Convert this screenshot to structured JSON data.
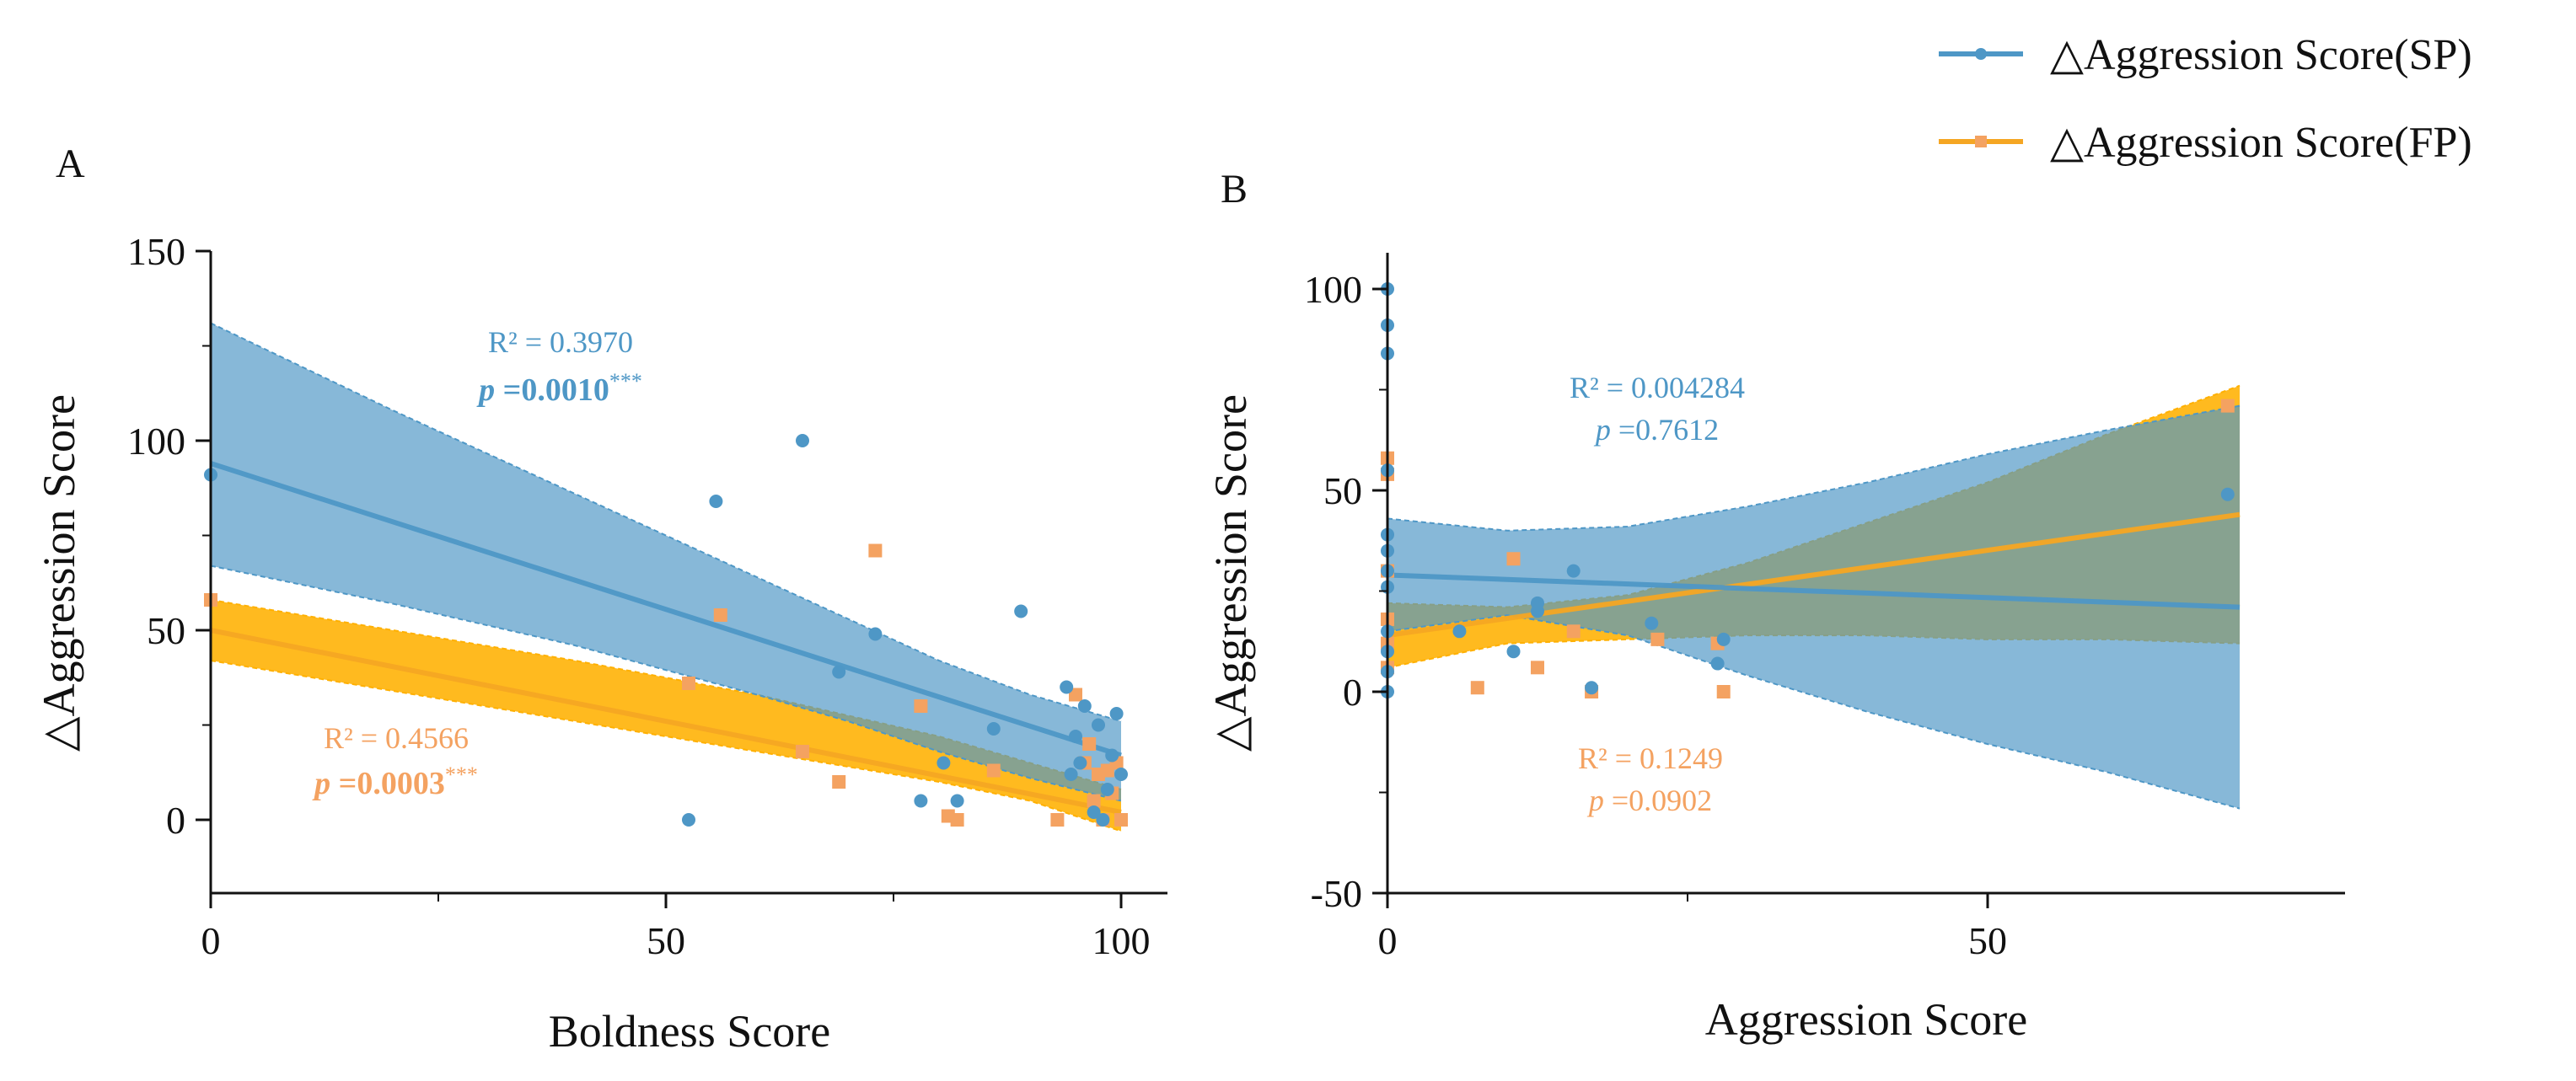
{
  "legend": {
    "position": "top-right",
    "entries": [
      {
        "label": "△Aggression Score(SP)",
        "color": "#4e97c6",
        "marker": "circle"
      },
      {
        "label": "△Aggression Score(FP)",
        "color": "#f5a623",
        "marker": "square"
      }
    ]
  },
  "colors": {
    "sp": "#4e97c6",
    "fp": "#f5a623",
    "fp_points": "#f4a261",
    "sp_band": "#4e97c6",
    "fp_band": "#ffb000"
  },
  "chart_data": [
    {
      "panel": "A",
      "type": "scatter",
      "xlabel": "Boldness Score",
      "ylabel": "△Aggression Score",
      "xlim": [
        0,
        105
      ],
      "ylim": [
        -20,
        150
      ],
      "xticks": [
        0,
        50,
        100
      ],
      "yticks": [
        0,
        50,
        100,
        150
      ],
      "grid": false,
      "series": [
        {
          "name": "△Aggression Score(SP)",
          "points": [
            [
              0,
              91
            ],
            [
              52.5,
              0
            ],
            [
              55.5,
              84
            ],
            [
              65,
              100
            ],
            [
              69,
              39
            ],
            [
              73,
              49
            ],
            [
              78,
              5
            ],
            [
              80.5,
              15
            ],
            [
              82,
              5
            ],
            [
              86,
              24
            ],
            [
              89,
              55
            ],
            [
              94,
              35
            ],
            [
              94.5,
              12
            ],
            [
              95,
              22
            ],
            [
              95.5,
              15
            ],
            [
              96,
              30
            ],
            [
              97,
              2
            ],
            [
              97.5,
              25
            ],
            [
              98,
              0
            ],
            [
              98.5,
              8
            ],
            [
              99,
              17
            ],
            [
              99.5,
              28
            ],
            [
              100,
              12
            ]
          ],
          "fit": {
            "x": [
              0,
              100
            ],
            "y": [
              94,
              17
            ]
          },
          "ci_upper": [
            [
              0,
              131
            ],
            [
              20,
              108
            ],
            [
              40,
              86
            ],
            [
              60,
              64
            ],
            [
              70,
              53
            ],
            [
              80,
              42
            ],
            [
              90,
              33
            ],
            [
              100,
              26
            ]
          ],
          "ci_lower": [
            [
              0,
              67
            ],
            [
              20,
              57
            ],
            [
              40,
              46
            ],
            [
              60,
              33
            ],
            [
              70,
              26
            ],
            [
              80,
              18
            ],
            [
              90,
              11
            ],
            [
              100,
              5
            ]
          ]
        },
        {
          "name": "△Aggression Score(FP)",
          "points": [
            [
              0,
              58
            ],
            [
              52.5,
              36
            ],
            [
              56,
              54
            ],
            [
              65,
              18
            ],
            [
              69,
              10
            ],
            [
              73,
              71
            ],
            [
              78,
              30
            ],
            [
              81,
              1
            ],
            [
              82,
              0
            ],
            [
              86,
              13
            ],
            [
              93,
              0
            ],
            [
              95,
              33
            ],
            [
              96,
              15
            ],
            [
              96.5,
              20
            ],
            [
              97,
              5
            ],
            [
              97.5,
              12
            ],
            [
              98,
              0
            ],
            [
              98.5,
              13
            ],
            [
              99,
              7
            ],
            [
              99.5,
              15
            ],
            [
              100,
              0
            ]
          ],
          "fit": {
            "x": [
              0,
              100
            ],
            "y": [
              50,
              2
            ]
          },
          "ci_upper": [
            [
              0,
              58
            ],
            [
              20,
              50
            ],
            [
              40,
              42
            ],
            [
              60,
              33
            ],
            [
              80,
              22
            ],
            [
              90,
              15
            ],
            [
              100,
              8
            ]
          ],
          "ci_lower": [
            [
              0,
              42
            ],
            [
              20,
              34
            ],
            [
              40,
              26
            ],
            [
              60,
              18
            ],
            [
              80,
              10
            ],
            [
              90,
              5
            ],
            [
              100,
              -3
            ]
          ]
        }
      ],
      "annotations": [
        {
          "series": "SP",
          "r2": "R² = 0.3970",
          "p_prefix": "p",
          "p_value": " =0.0010",
          "stars": "***"
        },
        {
          "series": "FP",
          "r2": "R² = 0.4566",
          "p_prefix": "p",
          "p_value": " =0.0003",
          "stars": "***"
        }
      ]
    },
    {
      "panel": "B",
      "type": "scatter",
      "xlabel": "Aggression Score",
      "ylabel": "△Aggression Score",
      "xlim": [
        0,
        80
      ],
      "ylim": [
        -50,
        110
      ],
      "xticks": [
        0,
        50
      ],
      "yticks": [
        -50,
        0,
        50,
        100
      ],
      "grid": false,
      "series": [
        {
          "name": "△Aggression Score(SP)",
          "points": [
            [
              0,
              100
            ],
            [
              0,
              91
            ],
            [
              0,
              84
            ],
            [
              0,
              55
            ],
            [
              0,
              39
            ],
            [
              0,
              35
            ],
            [
              0,
              30
            ],
            [
              0,
              26
            ],
            [
              0,
              15
            ],
            [
              0,
              10
            ],
            [
              0,
              5
            ],
            [
              0,
              0
            ],
            [
              6,
              15
            ],
            [
              10.5,
              10
            ],
            [
              12.5,
              22
            ],
            [
              12.5,
              20
            ],
            [
              15.5,
              30
            ],
            [
              17,
              1
            ],
            [
              22,
              17
            ],
            [
              27.5,
              7
            ],
            [
              28,
              13
            ],
            [
              70,
              49
            ]
          ],
          "fit": {
            "x": [
              0,
              71
            ],
            "y": [
              29,
              21
            ]
          },
          "ci_upper": [
            [
              0,
              43
            ],
            [
              10,
              40
            ],
            [
              20,
              41
            ],
            [
              30,
              46
            ],
            [
              40,
              52
            ],
            [
              50,
              59
            ],
            [
              60,
              65
            ],
            [
              71,
              71
            ]
          ],
          "ci_lower": [
            [
              0,
              15
            ],
            [
              10,
              19
            ],
            [
              20,
              14
            ],
            [
              30,
              4
            ],
            [
              40,
              -5
            ],
            [
              50,
              -13
            ],
            [
              60,
              -20
            ],
            [
              71,
              -29
            ]
          ]
        },
        {
          "name": "△Aggression Score(FP)",
          "points": [
            [
              0,
              58
            ],
            [
              0,
              54
            ],
            [
              0,
              30
            ],
            [
              0,
              18
            ],
            [
              0,
              12
            ],
            [
              0,
              6
            ],
            [
              7.5,
              1
            ],
            [
              10.5,
              33
            ],
            [
              12.5,
              6
            ],
            [
              15.5,
              15
            ],
            [
              17,
              0
            ],
            [
              22.5,
              13
            ],
            [
              27.5,
              12
            ],
            [
              28,
              0
            ],
            [
              70,
              71
            ]
          ],
          "fit": {
            "x": [
              0,
              71
            ],
            "y": [
              14,
              44
            ]
          },
          "ci_upper": [
            [
              0,
              22
            ],
            [
              10,
              21
            ],
            [
              20,
              24
            ],
            [
              30,
              32
            ],
            [
              40,
              42
            ],
            [
              50,
              52
            ],
            [
              60,
              64
            ],
            [
              71,
              76
            ]
          ],
          "ci_lower": [
            [
              0,
              6
            ],
            [
              10,
              12
            ],
            [
              20,
              13
            ],
            [
              30,
              14
            ],
            [
              40,
              14
            ],
            [
              50,
              13
            ],
            [
              60,
              13
            ],
            [
              71,
              12
            ]
          ]
        }
      ],
      "annotations": [
        {
          "series": "SP",
          "r2": "R² = 0.004284",
          "p_prefix": "p",
          "p_value": " =0.7612",
          "stars": ""
        },
        {
          "series": "FP",
          "r2": "R² = 0.1249",
          "p_prefix": "p",
          "p_value": " =0.0902",
          "stars": ""
        }
      ]
    }
  ]
}
